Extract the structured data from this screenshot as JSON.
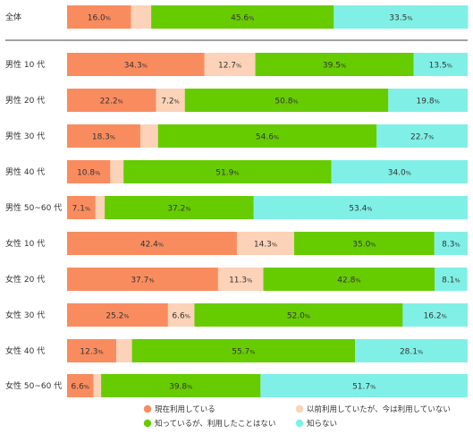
{
  "chart_data": {
    "type": "bar",
    "orientation": "horizontal",
    "stacked": "percent",
    "percent_suffix": "%",
    "categories": [
      "全体",
      "男性 10 代",
      "男性 20 代",
      "男性 30 代",
      "男性 40 代",
      "男性 50~60 代",
      "女性 10 代",
      "女性 20 代",
      "女性 30 代",
      "女性 40 代",
      "女性 50~60 代"
    ],
    "series": [
      {
        "name": "現在利用している",
        "color": "#f98c5f",
        "values": [
          16.0,
          34.3,
          22.2,
          18.3,
          10.8,
          7.1,
          42.4,
          37.7,
          25.2,
          12.3,
          6.6
        ]
      },
      {
        "name": "以前利用していたが、今は利用していない",
        "color": "#fcd2b8",
        "values": [
          5.0,
          12.7,
          7.2,
          4.4,
          3.3,
          2.3,
          14.3,
          11.3,
          6.6,
          3.9,
          1.9
        ]
      },
      {
        "name": "知っているが、利用したことはない",
        "color": "#66cc00",
        "values": [
          45.6,
          39.5,
          50.8,
          54.6,
          51.9,
          37.2,
          35.0,
          42.8,
          52.0,
          55.7,
          39.8
        ]
      },
      {
        "name": "知らない",
        "color": "#80f0e6",
        "values": [
          33.5,
          13.5,
          19.8,
          22.7,
          34.0,
          53.4,
          8.3,
          8.1,
          16.2,
          28.1,
          51.7
        ]
      }
    ],
    "labels": [
      [
        "16.0",
        "",
        "45.6",
        "33.5"
      ],
      [
        "34.3",
        "12.7",
        "39.5",
        "13.5"
      ],
      [
        "22.2",
        "7.2",
        "50.8",
        "19.8"
      ],
      [
        "18.3",
        "",
        "54.6",
        "22.7"
      ],
      [
        "10.8",
        "",
        "51.9",
        "34.0"
      ],
      [
        "7.1",
        "",
        "37.2",
        "53.4"
      ],
      [
        "42.4",
        "14.3",
        "35.0",
        "8.3"
      ],
      [
        "37.7",
        "11.3",
        "42.8",
        "8.1"
      ],
      [
        "25.2",
        "6.6",
        "52.0",
        "16.2"
      ],
      [
        "12.3",
        "",
        "55.7",
        "28.1"
      ],
      [
        "6.6",
        "",
        "39.8",
        "51.7"
      ]
    ],
    "xlim": [
      0,
      100
    ],
    "grid": false,
    "legend_position": "bottom"
  }
}
